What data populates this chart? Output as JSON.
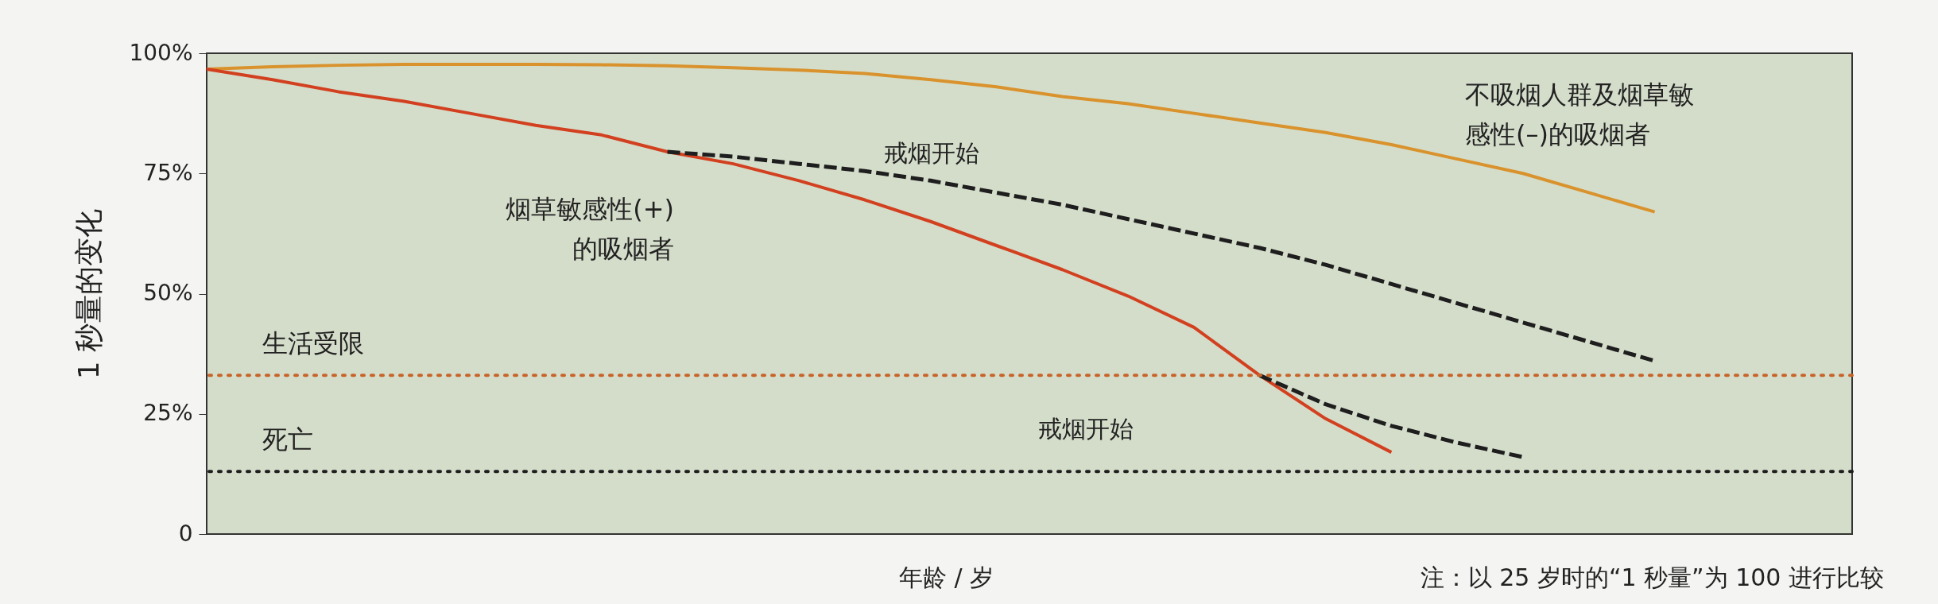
{
  "chart_data": {
    "type": "line",
    "xlabel": "年龄 / 岁",
    "ylabel": "1 秒量的变化",
    "categories": [
      null,
      null,
      null,
      null,
      null,
      null,
      null,
      null,
      null,
      null,
      null,
      null,
      null,
      null,
      null,
      null,
      null,
      null,
      null,
      null,
      null,
      null,
      null,
      null,
      null,
      null
    ],
    "series": [
      {
        "name": "不吸烟人群及烟草敏感性(–)的吸烟者",
        "color": "#d9922c",
        "values": [
          96.7,
          97.2,
          97.5,
          97.7,
          97.7,
          97.7,
          97.6,
          97.4,
          97,
          96.5,
          95.8,
          94.5,
          93,
          91,
          89.5,
          87.5,
          85.5,
          83.5,
          81,
          78,
          75,
          71,
          67,
          null,
          null,
          null
        ]
      },
      {
        "name": "烟草敏感性(+)的吸烟者",
        "color": "#d2401f",
        "values": [
          96.7,
          94.5,
          92,
          90,
          87.5,
          85,
          83,
          79.5,
          77,
          73.5,
          69.5,
          65,
          60,
          55,
          49.5,
          43,
          33,
          24,
          17,
          null,
          null,
          null,
          null,
          null,
          null,
          null
        ]
      },
      {
        "color": "#1e1e1e",
        "line_style": "dashed",
        "values": [
          null,
          null,
          null,
          null,
          null,
          null,
          null,
          79.5,
          78.5,
          77,
          75.5,
          73.5,
          71,
          68.5,
          65.5,
          62.5,
          59.5,
          56,
          52,
          48,
          44,
          40,
          36,
          null,
          null,
          null
        ]
      },
      {
        "color": "#1e1e1e",
        "line_style": "dashed",
        "values": [
          null,
          null,
          null,
          null,
          null,
          null,
          null,
          null,
          null,
          null,
          null,
          null,
          null,
          null,
          null,
          null,
          33,
          27,
          22.5,
          19,
          16,
          null,
          null,
          null,
          null,
          null
        ]
      }
    ],
    "ylim": [
      0,
      100
    ],
    "yticks": [
      0,
      {
        "value": 25,
        "label": "25%"
      },
      {
        "value": 50,
        "label": "50%"
      },
      {
        "value": 75,
        "label": "75%"
      },
      {
        "value": 100,
        "label": "100%"
      }
    ],
    "tick_labels": "y",
    "ref_lines": [
      {
        "axis": "y",
        "value": 33,
        "label": "生活受限",
        "color": "#c8642a",
        "line_style": "dotted"
      },
      {
        "axis": "y",
        "value": 13,
        "label": "死亡",
        "color": "#1e1e1e",
        "line_style": "dotted"
      }
    ],
    "annotations": [
      "戒烟开始",
      "戒烟开始",
      "注：以 25 岁时的“1 秒量”为 100 进行比较"
    ]
  }
}
